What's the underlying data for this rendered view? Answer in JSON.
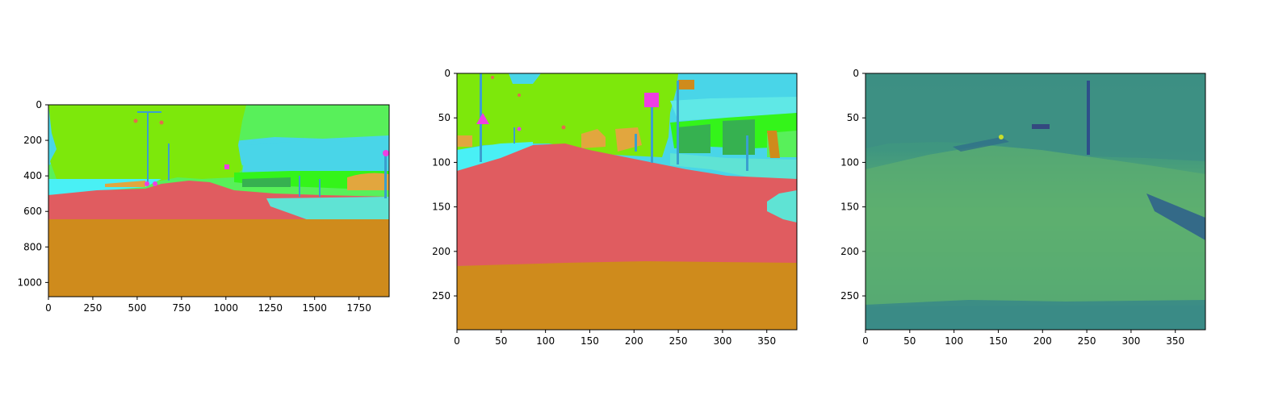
{
  "chart_data": [
    {
      "type": "heatmap",
      "image_kind": "semantic segmentation map (full resolution)",
      "xlim": [
        0,
        1920
      ],
      "ylim": [
        1080,
        0
      ],
      "xticks": [
        0,
        250,
        500,
        750,
        1000,
        1250,
        1500,
        1750
      ],
      "yticks": [
        0,
        200,
        400,
        600,
        800,
        1000
      ],
      "xtick_labels": [
        "0",
        "250",
        "500",
        "750",
        "1000",
        "1250",
        "1500",
        "1750"
      ],
      "ytick_labels": [
        "0",
        "200",
        "400",
        "600",
        "800",
        "1000"
      ]
    },
    {
      "type": "heatmap",
      "image_kind": "semantic segmentation map (downsampled)",
      "xlim": [
        0,
        384
      ],
      "ylim": [
        288,
        0
      ],
      "xticks": [
        0,
        50,
        100,
        150,
        200,
        250,
        300,
        350
      ],
      "yticks": [
        0,
        50,
        100,
        150,
        200,
        250
      ],
      "xtick_labels": [
        "0",
        "50",
        "100",
        "150",
        "200",
        "250",
        "300",
        "350"
      ],
      "ytick_labels": [
        "0",
        "50",
        "100",
        "150",
        "200",
        "250"
      ]
    },
    {
      "type": "heatmap",
      "image_kind": "single-channel image (viridis-style colormap)",
      "xlim": [
        0,
        384
      ],
      "ylim": [
        288,
        0
      ],
      "xticks": [
        0,
        50,
        100,
        150,
        200,
        250,
        300,
        350
      ],
      "yticks": [
        0,
        50,
        100,
        150,
        200,
        250
      ],
      "xtick_labels": [
        "0",
        "50",
        "100",
        "150",
        "200",
        "250",
        "300",
        "350"
      ],
      "ytick_labels": [
        "0",
        "50",
        "100",
        "150",
        "200",
        "250"
      ]
    }
  ],
  "colors": {
    "road": "#e05c60",
    "ground": "#cf8b1c",
    "vegetation": "#7de80b",
    "sky": "#49d5e8",
    "terrain": "#58f05a",
    "sidewalk": "#5fe3d4",
    "fence": "#36b150",
    "wall": "#34f41a",
    "pole": "#3a9fcf",
    "vehicle": "#e2a63e",
    "sign": "#ee3ee3",
    "light": "#e36d4d",
    "viridis_base": "#3f9f7c"
  }
}
